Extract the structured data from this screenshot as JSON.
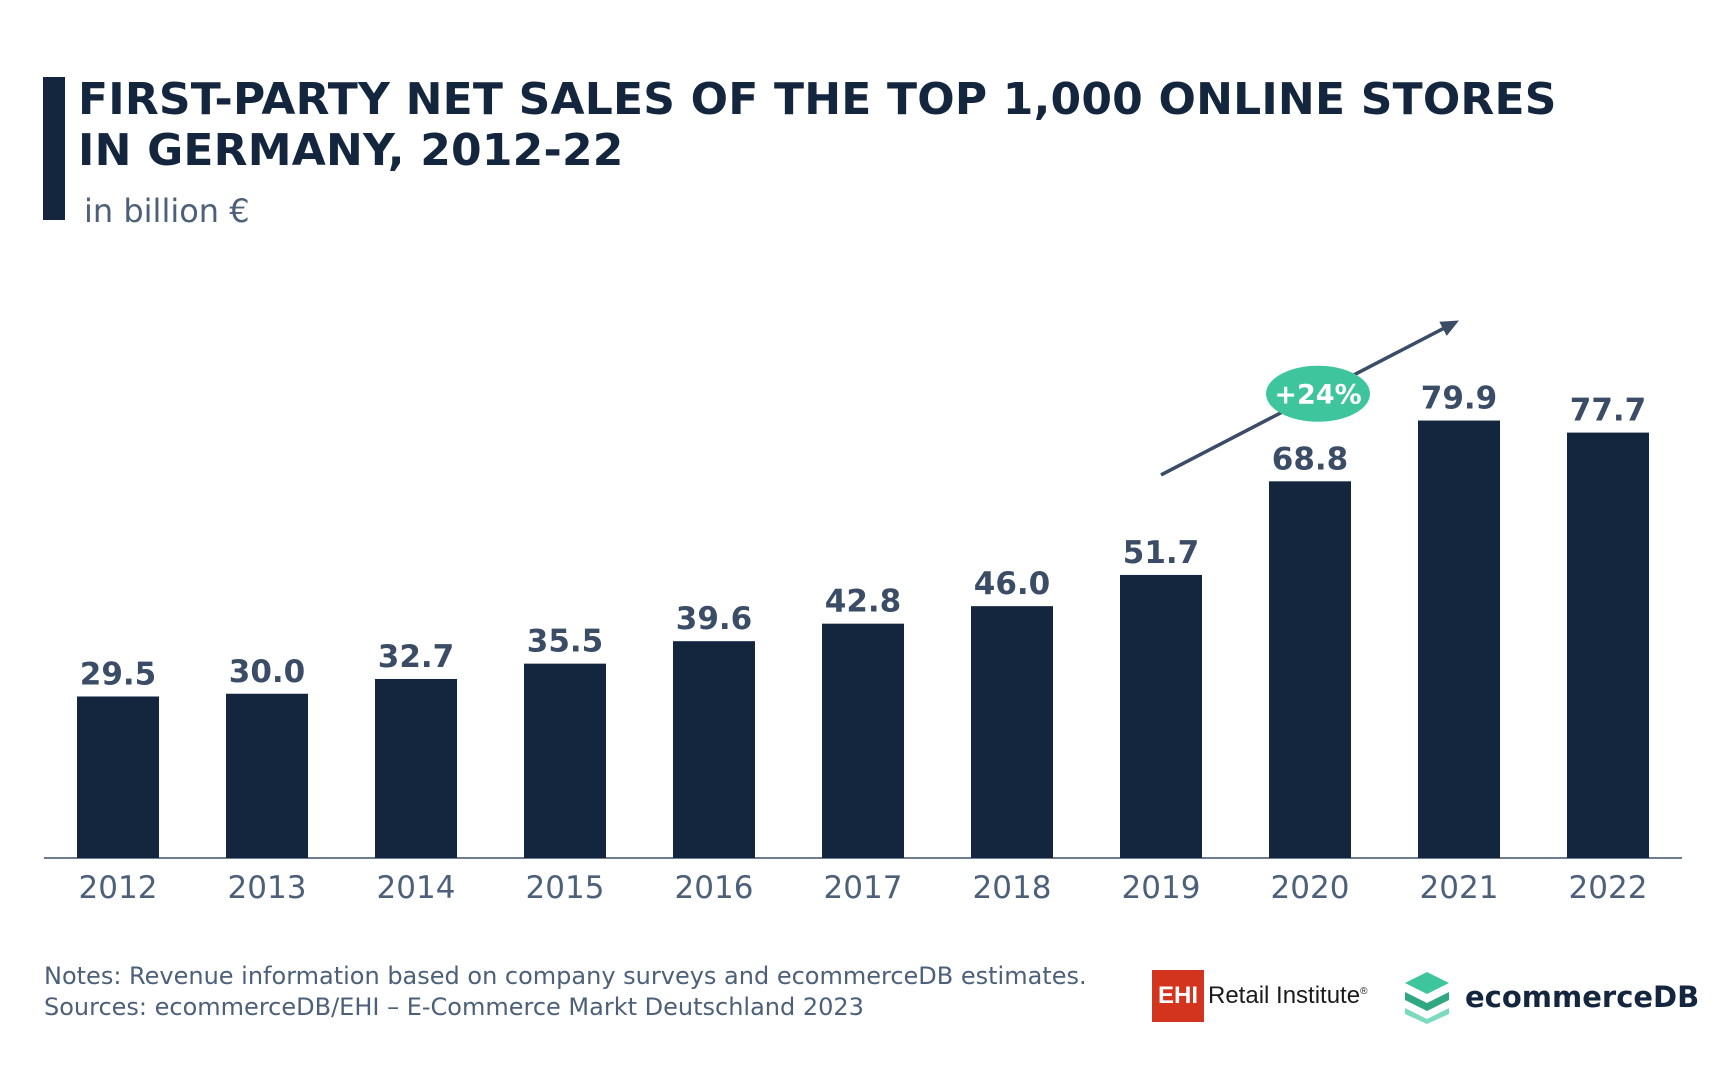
{
  "header": {
    "title": "FIRST-PARTY NET SALES OF THE TOP 1,000 ONLINE STORES IN GERMANY, 2012-22",
    "subtitle": "in billion €"
  },
  "chart_data": {
    "type": "bar",
    "title": "FIRST-PARTY NET SALES OF THE TOP 1,000 ONLINE STORES IN GERMANY, 2012-22",
    "ylabel": "in billion €",
    "xlabel": "",
    "categories": [
      "2012",
      "2013",
      "2014",
      "2015",
      "2016",
      "2017",
      "2018",
      "2019",
      "2020",
      "2021",
      "2022"
    ],
    "values": [
      29.5,
      30.0,
      32.7,
      35.5,
      39.6,
      42.8,
      46.0,
      51.7,
      68.8,
      79.9,
      77.7
    ],
    "value_labels": [
      "29.5",
      "30.0",
      "32.7",
      "35.5",
      "39.6",
      "42.8",
      "46.0",
      "51.7",
      "68.8",
      "79.9",
      "77.7"
    ],
    "ylim": [
      0,
      80
    ],
    "grid": false,
    "annotation": {
      "text": "+24%",
      "from_category": "2019",
      "to_category": "2021"
    }
  },
  "footer": {
    "notes": "Notes: Revenue information based on company surveys and ecommerceDB estimates.",
    "sources": "Sources: ecommerceDB/EHI – E-Commerce Markt Deutschland 2023"
  },
  "logos": {
    "ehi_mark": "EHI",
    "ehi_name": "Retail Institute",
    "ehi_reg": "®",
    "ecommercedb_name": "ecommerceDB"
  },
  "colors": {
    "bar": "#14253e",
    "label": "#4d6079",
    "value_label": "#3a4c66",
    "accent": "#3fc59d",
    "axis": "#6e7c8f",
    "ehi_red": "#d2341e"
  },
  "icons": {
    "ehi": "ehi-logo-icon",
    "ecommercedb": "stacked-layers-icon",
    "trend": "trend-arrow-icon"
  }
}
